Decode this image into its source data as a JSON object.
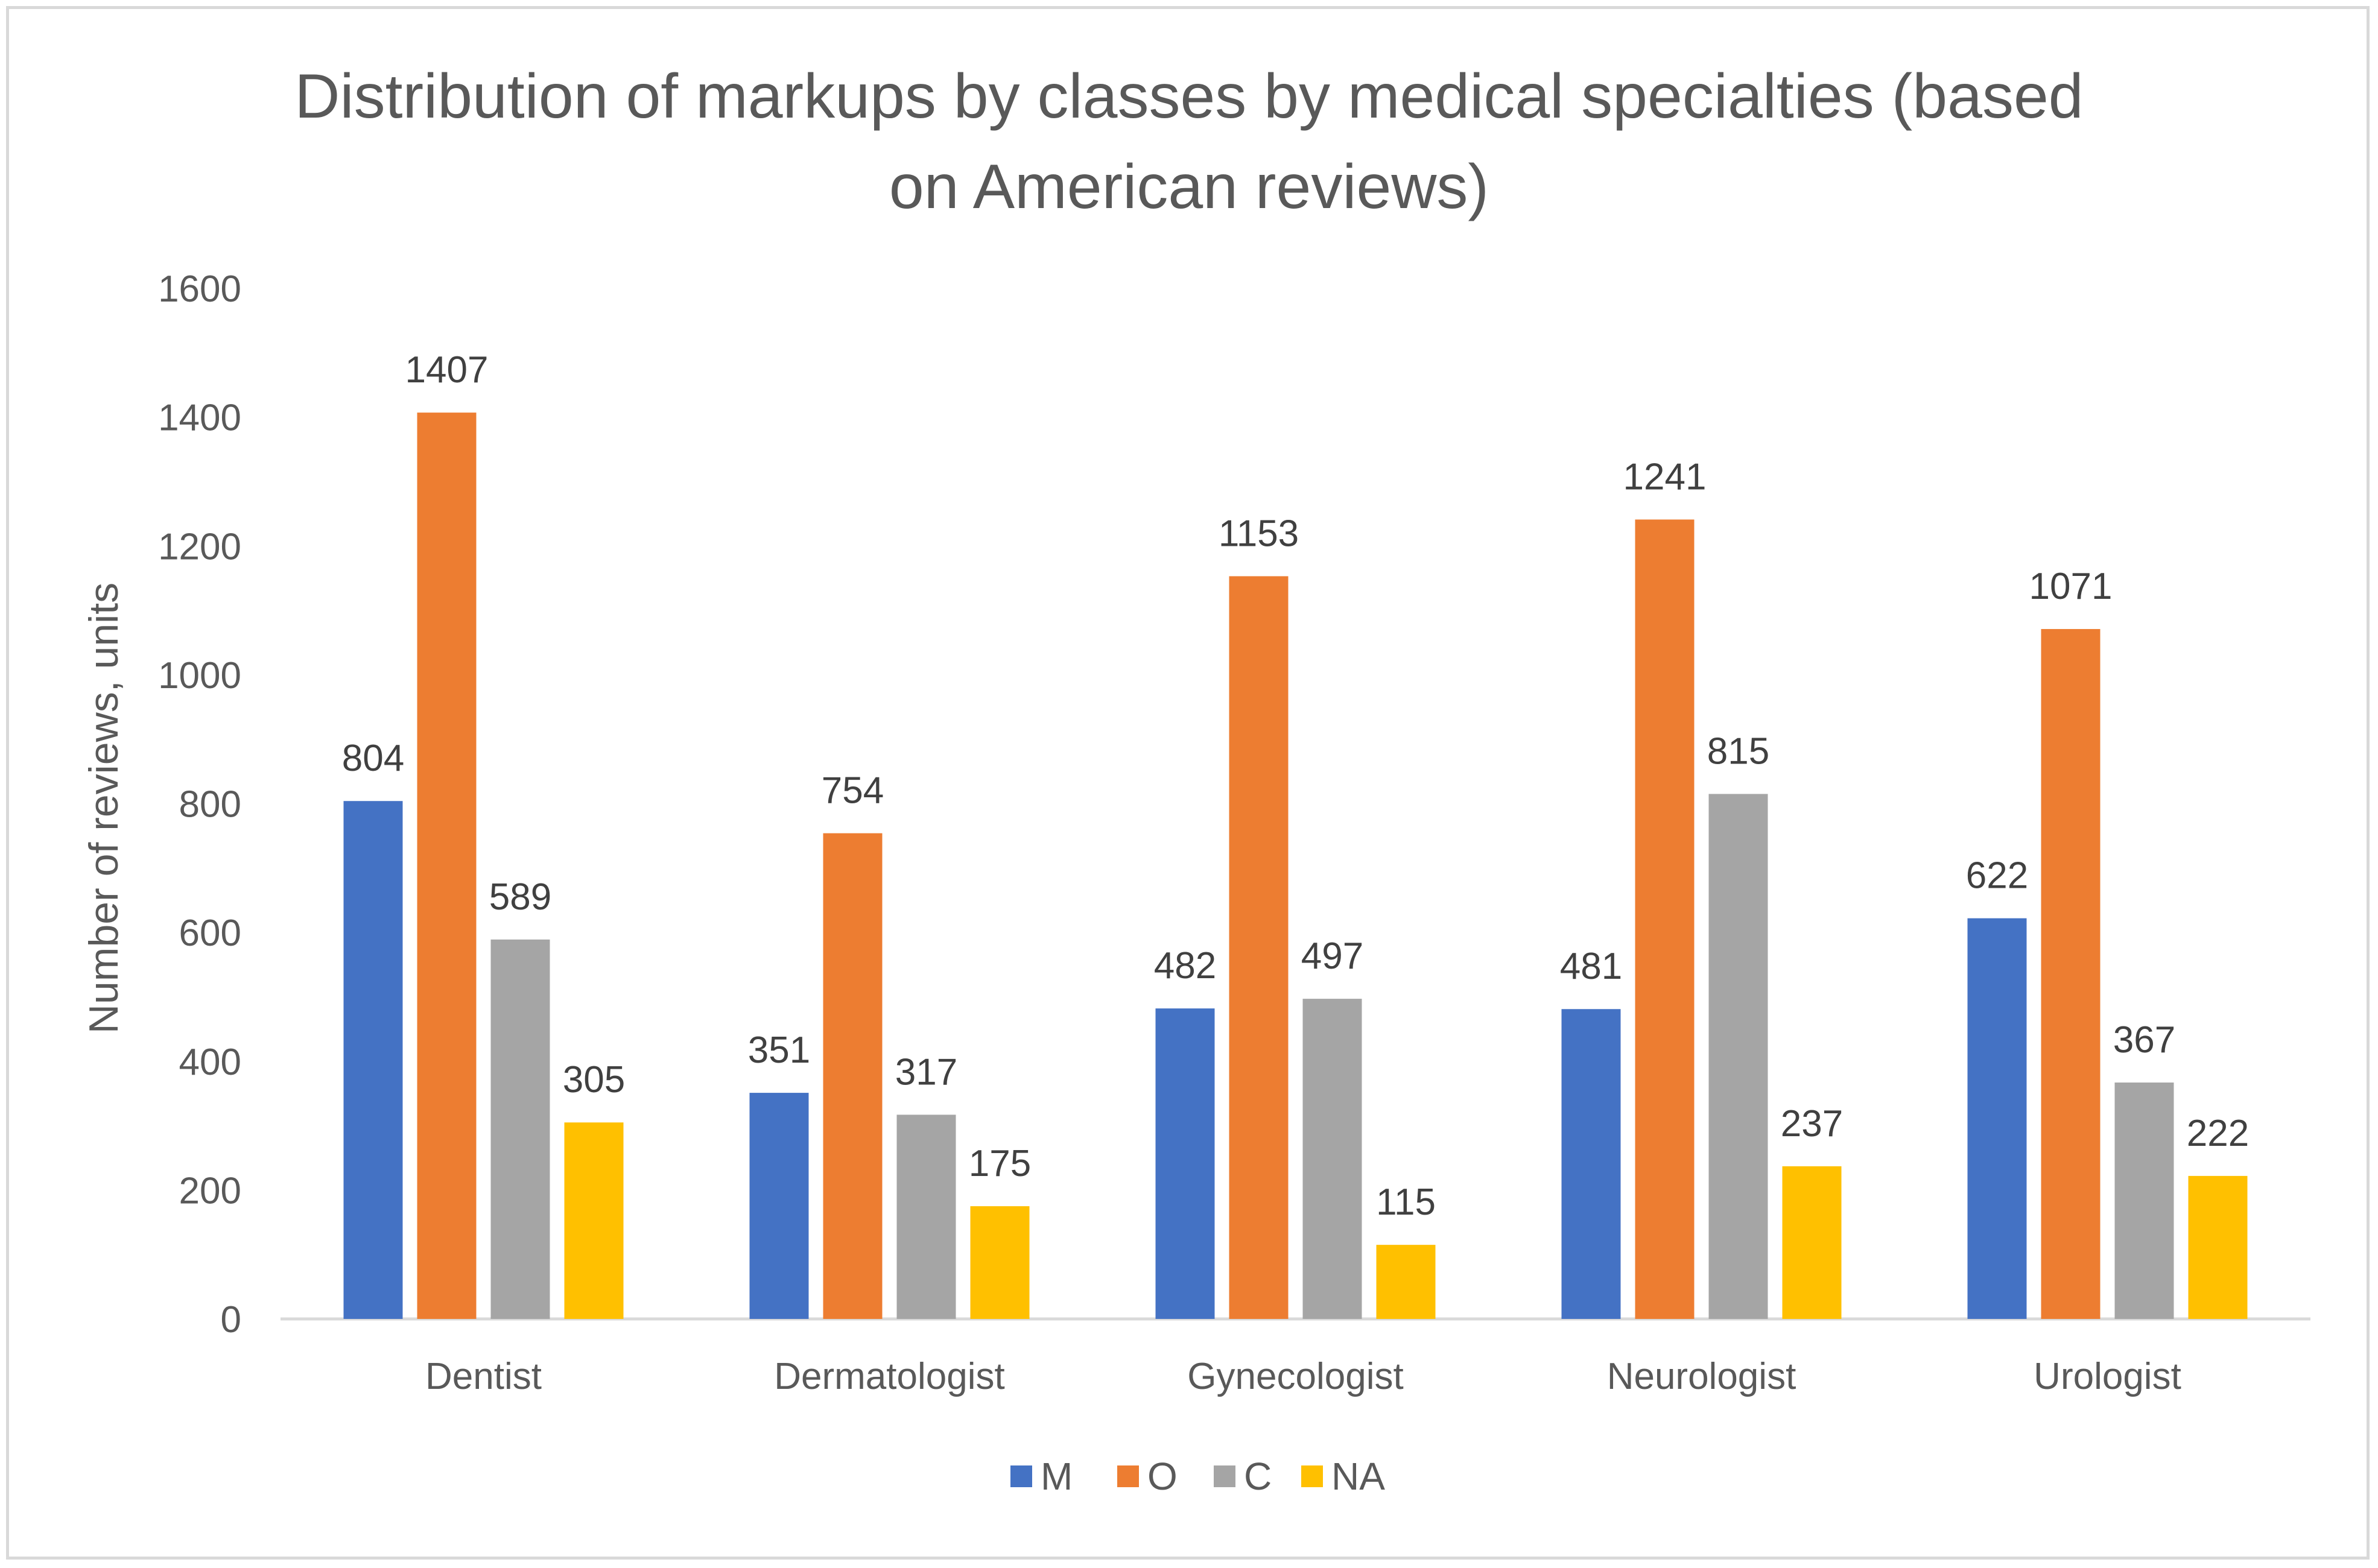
{
  "chart_data": {
    "type": "bar",
    "title_lines": [
      "Distribution of markups by classes by medical specialties (based",
      "on American reviews)"
    ],
    "xlabel": "",
    "ylabel": "Number of reviews, units",
    "categories": [
      "Dentist",
      "Dermatologist",
      "Gynecologist",
      "Neurologist",
      "Urologist"
    ],
    "series": [
      {
        "name": "M",
        "color": "#4472C4",
        "values": [
          804,
          351,
          482,
          481,
          622
        ]
      },
      {
        "name": "O",
        "color": "#ED7D31",
        "values": [
          1407,
          754,
          1153,
          1241,
          1071
        ]
      },
      {
        "name": "C",
        "color": "#A5A5A5",
        "values": [
          589,
          317,
          497,
          815,
          367
        ]
      },
      {
        "name": "NA",
        "color": "#FFC000",
        "values": [
          305,
          175,
          115,
          237,
          222
        ]
      }
    ],
    "ylim": [
      0,
      1600
    ],
    "yticks": [
      "0",
      "200",
      "400",
      "600",
      "800",
      "1000",
      "1200",
      "1400",
      "1600"
    ],
    "grid": false,
    "legend_position": "bottom"
  }
}
